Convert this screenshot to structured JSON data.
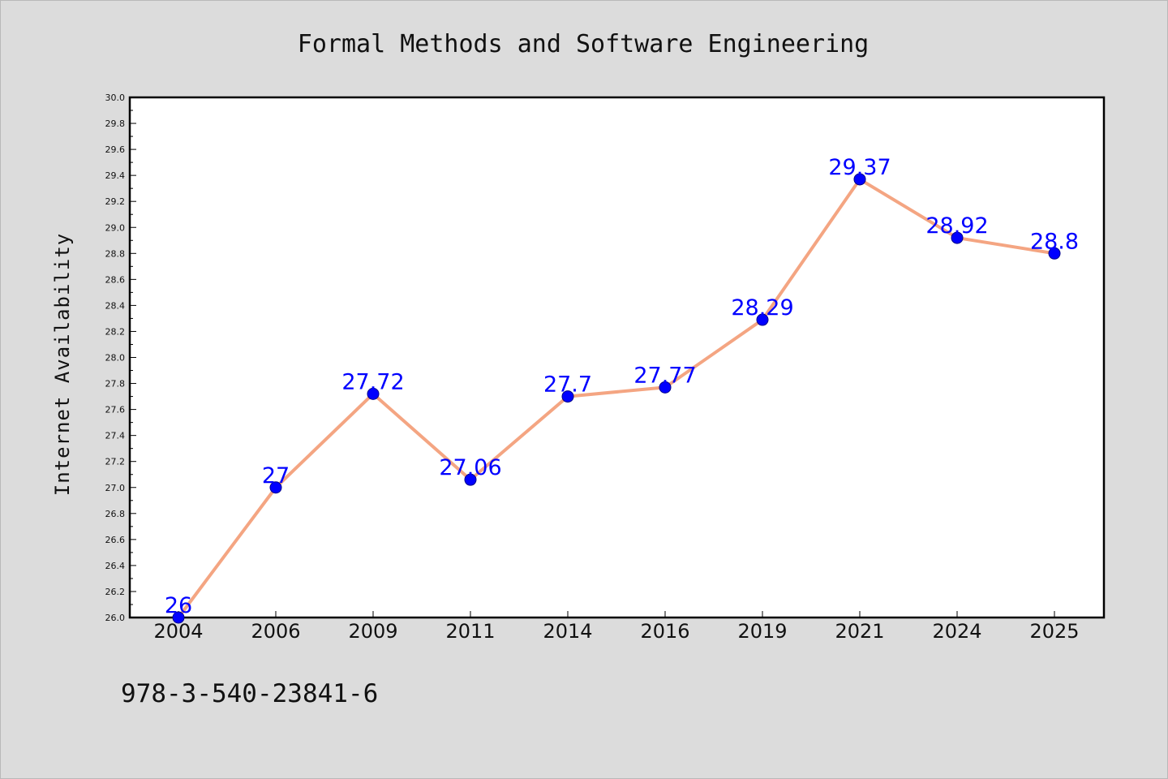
{
  "chart_data": {
    "type": "line",
    "title": "Formal Methods and Software Engineering",
    "xlabel": "",
    "ylabel": "Internet Availability",
    "categories": [
      "2004",
      "2006",
      "2009",
      "2011",
      "2014",
      "2016",
      "2019",
      "2021",
      "2024",
      "2025"
    ],
    "series": [
      {
        "values": [
          26,
          27,
          27.72,
          27.06,
          27.7,
          27.77,
          28.29,
          29.37,
          28.92,
          28.8
        ],
        "labels": [
          "26",
          "27",
          "27.72",
          "27.06",
          "27.7",
          "27.77",
          "28.29",
          "29.37",
          "28.92",
          "28.8"
        ],
        "line_color": "#f4a582",
        "marker_color": "#0000ff"
      }
    ],
    "ylim": [
      26.0,
      30.0
    ],
    "yticks": [
      "26.0",
      "26.2",
      "26.4",
      "26.6",
      "26.8",
      "27.0",
      "27.2",
      "27.4",
      "27.6",
      "27.8",
      "28.0",
      "28.2",
      "28.4",
      "28.6",
      "28.8",
      "29.0",
      "29.2",
      "29.4",
      "29.6",
      "29.8",
      "30.0"
    ],
    "grid": false,
    "legend": "none"
  },
  "footer_text": "978-3-540-23841-6"
}
